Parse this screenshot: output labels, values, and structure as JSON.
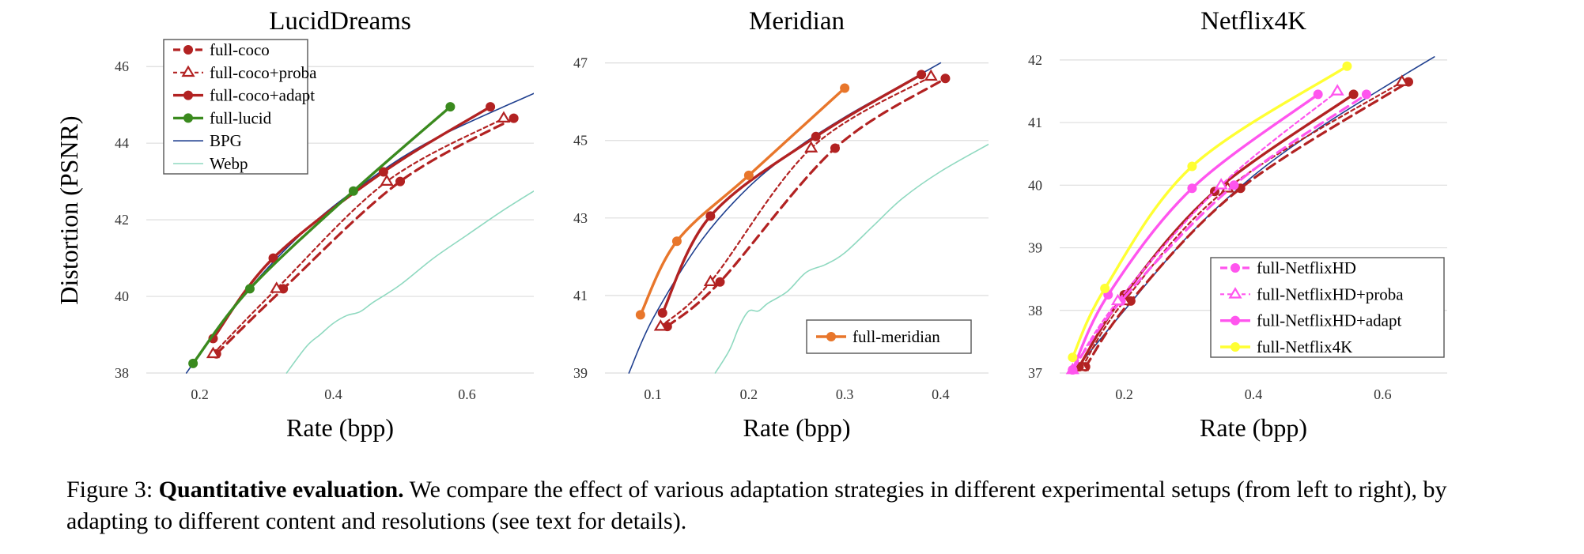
{
  "caption": {
    "label": "Figure 3:",
    "bold": "Quantitative evaluation.",
    "text": "We compare the effect of various adaptation strategies in different experimental setups (from left to right), by adapting to different content and resolutions (see text for details)."
  },
  "colors": {
    "coco": "#b22222",
    "lucid": "#3a8a1e",
    "bpg": "#1f3f8f",
    "webp": "#8fd9c0",
    "meridian": "#e8762b",
    "netflixhd": "#ff55ee",
    "netflix4k": "#ffff33",
    "grid": "#dddddd"
  },
  "chart_data": [
    {
      "type": "line",
      "title": "LucidDreams",
      "xlabel": "Rate (bpp)",
      "ylabel": "Distortion (PSNR)",
      "xlim": [
        0.12,
        0.7
      ],
      "ylim": [
        38,
        46.5
      ],
      "xticks": [
        "0.2",
        "0.4",
        "0.6"
      ],
      "yticks": [
        "38",
        "40",
        "42",
        "44",
        "46"
      ],
      "grid": true,
      "legend_position": "top-left",
      "series": [
        {
          "name": "full-coco",
          "style": "dashed",
          "marker": "circle",
          "color": "coco",
          "x": [
            0.225,
            0.325,
            0.5,
            0.67
          ],
          "y": [
            38.5,
            40.2,
            43.0,
            44.65
          ]
        },
        {
          "name": "full-coco+proba",
          "style": "dotted",
          "marker": "triangle",
          "color": "coco",
          "x": [
            0.22,
            0.315,
            0.48,
            0.655
          ],
          "y": [
            38.5,
            40.2,
            43.0,
            44.65
          ]
        },
        {
          "name": "full-coco+adapt",
          "style": "solid",
          "marker": "circle",
          "color": "coco",
          "x": [
            0.22,
            0.31,
            0.475,
            0.635
          ],
          "y": [
            38.9,
            41.0,
            43.25,
            44.95
          ]
        },
        {
          "name": "full-lucid",
          "style": "solid",
          "marker": "circle",
          "color": "lucid",
          "x": [
            0.19,
            0.275,
            0.43,
            0.575
          ],
          "y": [
            38.25,
            40.2,
            42.75,
            44.95
          ]
        },
        {
          "name": "BPG",
          "style": "thin",
          "marker": "none",
          "color": "bpg",
          "x": [
            0.18,
            0.25,
            0.35,
            0.45,
            0.55,
            0.7
          ],
          "y": [
            38.0,
            39.7,
            41.6,
            43.0,
            44.1,
            45.3
          ]
        },
        {
          "name": "Webp",
          "style": "thin",
          "marker": "none",
          "color": "webp",
          "x": [
            0.33,
            0.36,
            0.38,
            0.4,
            0.42,
            0.44,
            0.46,
            0.5,
            0.55,
            0.6,
            0.65,
            0.7
          ],
          "y": [
            38.0,
            38.7,
            39.0,
            39.3,
            39.5,
            39.6,
            39.85,
            40.3,
            41.0,
            41.6,
            42.2,
            42.75
          ]
        }
      ]
    },
    {
      "type": "line",
      "title": "Meridian",
      "xlabel": "Rate (bpp)",
      "ylabel": "",
      "xlim": [
        0.05,
        0.45
      ],
      "ylim": [
        39,
        47.4
      ],
      "xticks": [
        "0.1",
        "0.2",
        "0.3",
        "0.4"
      ],
      "yticks": [
        "39",
        "41",
        "43",
        "45",
        "47"
      ],
      "grid": true,
      "legend_position": "bottom-right",
      "series": [
        {
          "name": "full-coco",
          "style": "dashed",
          "marker": "circle",
          "color": "coco",
          "x": [
            0.115,
            0.17,
            0.29,
            0.405
          ],
          "y": [
            40.2,
            41.35,
            44.8,
            46.6
          ]
        },
        {
          "name": "full-coco+proba",
          "style": "dotted",
          "marker": "triangle",
          "color": "coco",
          "x": [
            0.108,
            0.16,
            0.265,
            0.39
          ],
          "y": [
            40.2,
            41.35,
            44.8,
            46.65
          ]
        },
        {
          "name": "full-coco+adapt",
          "style": "solid",
          "marker": "circle",
          "color": "coco",
          "x": [
            0.11,
            0.16,
            0.27,
            0.38
          ],
          "y": [
            40.55,
            43.05,
            45.1,
            46.7
          ]
        },
        {
          "name": "full-meridian",
          "style": "solid",
          "marker": "circle",
          "color": "meridian",
          "x": [
            0.087,
            0.125,
            0.2,
            0.3
          ],
          "y": [
            40.5,
            42.4,
            44.1,
            46.35
          ]
        },
        {
          "name": "BPG",
          "style": "thin",
          "marker": "none",
          "color": "bpg",
          "x": [
            0.075,
            0.1,
            0.15,
            0.2,
            0.25,
            0.3,
            0.35,
            0.4
          ],
          "y": [
            39.0,
            40.4,
            42.4,
            43.8,
            44.8,
            45.6,
            46.3,
            47.0
          ]
        },
        {
          "name": "Webp",
          "style": "thin",
          "marker": "none",
          "color": "webp",
          "x": [
            0.165,
            0.18,
            0.19,
            0.2,
            0.21,
            0.22,
            0.24,
            0.26,
            0.28,
            0.3,
            0.33,
            0.36,
            0.4,
            0.45
          ],
          "y": [
            39.0,
            39.6,
            40.2,
            40.6,
            40.6,
            40.8,
            41.1,
            41.6,
            41.8,
            42.1,
            42.8,
            43.5,
            44.2,
            44.9
          ]
        }
      ]
    },
    {
      "type": "line",
      "title": "Netflix4K",
      "xlabel": "Rate (bpp)",
      "ylabel": "",
      "xlim": [
        0.1,
        0.7
      ],
      "ylim": [
        37,
        42.2
      ],
      "xticks": [
        "0.2",
        "0.4",
        "0.6"
      ],
      "yticks": [
        "37",
        "38",
        "39",
        "40",
        "41",
        "42"
      ],
      "grid": true,
      "legend_position": "bottom-right",
      "series": [
        {
          "name": "full-coco",
          "style": "dashed",
          "marker": "circle",
          "color": "coco",
          "x": [
            0.14,
            0.21,
            0.38,
            0.64
          ],
          "y": [
            37.1,
            38.15,
            39.95,
            41.65
          ]
        },
        {
          "name": "full-coco+proba",
          "style": "dotted",
          "marker": "triangle",
          "color": "coco",
          "x": [
            0.135,
            0.2,
            0.36,
            0.63
          ],
          "y": [
            37.1,
            38.15,
            39.95,
            41.65
          ]
        },
        {
          "name": "full-coco+adapt",
          "style": "solid",
          "marker": "circle",
          "color": "coco",
          "x": [
            0.13,
            0.2,
            0.34,
            0.555
          ],
          "y": [
            37.1,
            38.25,
            39.9,
            41.45
          ]
        },
        {
          "name": "full-NetflixHD",
          "style": "dashed",
          "marker": "circle",
          "color": "netflixhd",
          "x": [
            0.12,
            0.195,
            0.37,
            0.575
          ],
          "y": [
            37.05,
            38.15,
            40.0,
            41.45
          ]
        },
        {
          "name": "full-NetflixHD+proba",
          "style": "dotted",
          "marker": "triangle",
          "color": "netflixhd",
          "x": [
            0.12,
            0.19,
            0.35,
            0.53
          ],
          "y": [
            37.05,
            38.15,
            40.0,
            41.5
          ]
        },
        {
          "name": "full-NetflixHD+adapt",
          "style": "solid",
          "marker": "circle",
          "color": "netflixhd",
          "x": [
            0.12,
            0.175,
            0.305,
            0.5
          ],
          "y": [
            37.05,
            38.25,
            39.95,
            41.45
          ]
        },
        {
          "name": "full-Netflix4K",
          "style": "solid",
          "marker": "circle",
          "color": "netflix4k",
          "x": [
            0.12,
            0.17,
            0.305,
            0.545
          ],
          "y": [
            37.25,
            38.35,
            40.3,
            41.9
          ]
        },
        {
          "name": "BPG",
          "style": "thin",
          "marker": "none",
          "color": "bpg",
          "x": [
            0.12,
            0.2,
            0.3,
            0.4,
            0.5,
            0.6,
            0.68
          ],
          "y": [
            37.0,
            38.0,
            39.2,
            40.15,
            40.9,
            41.55,
            42.05
          ]
        }
      ]
    }
  ]
}
